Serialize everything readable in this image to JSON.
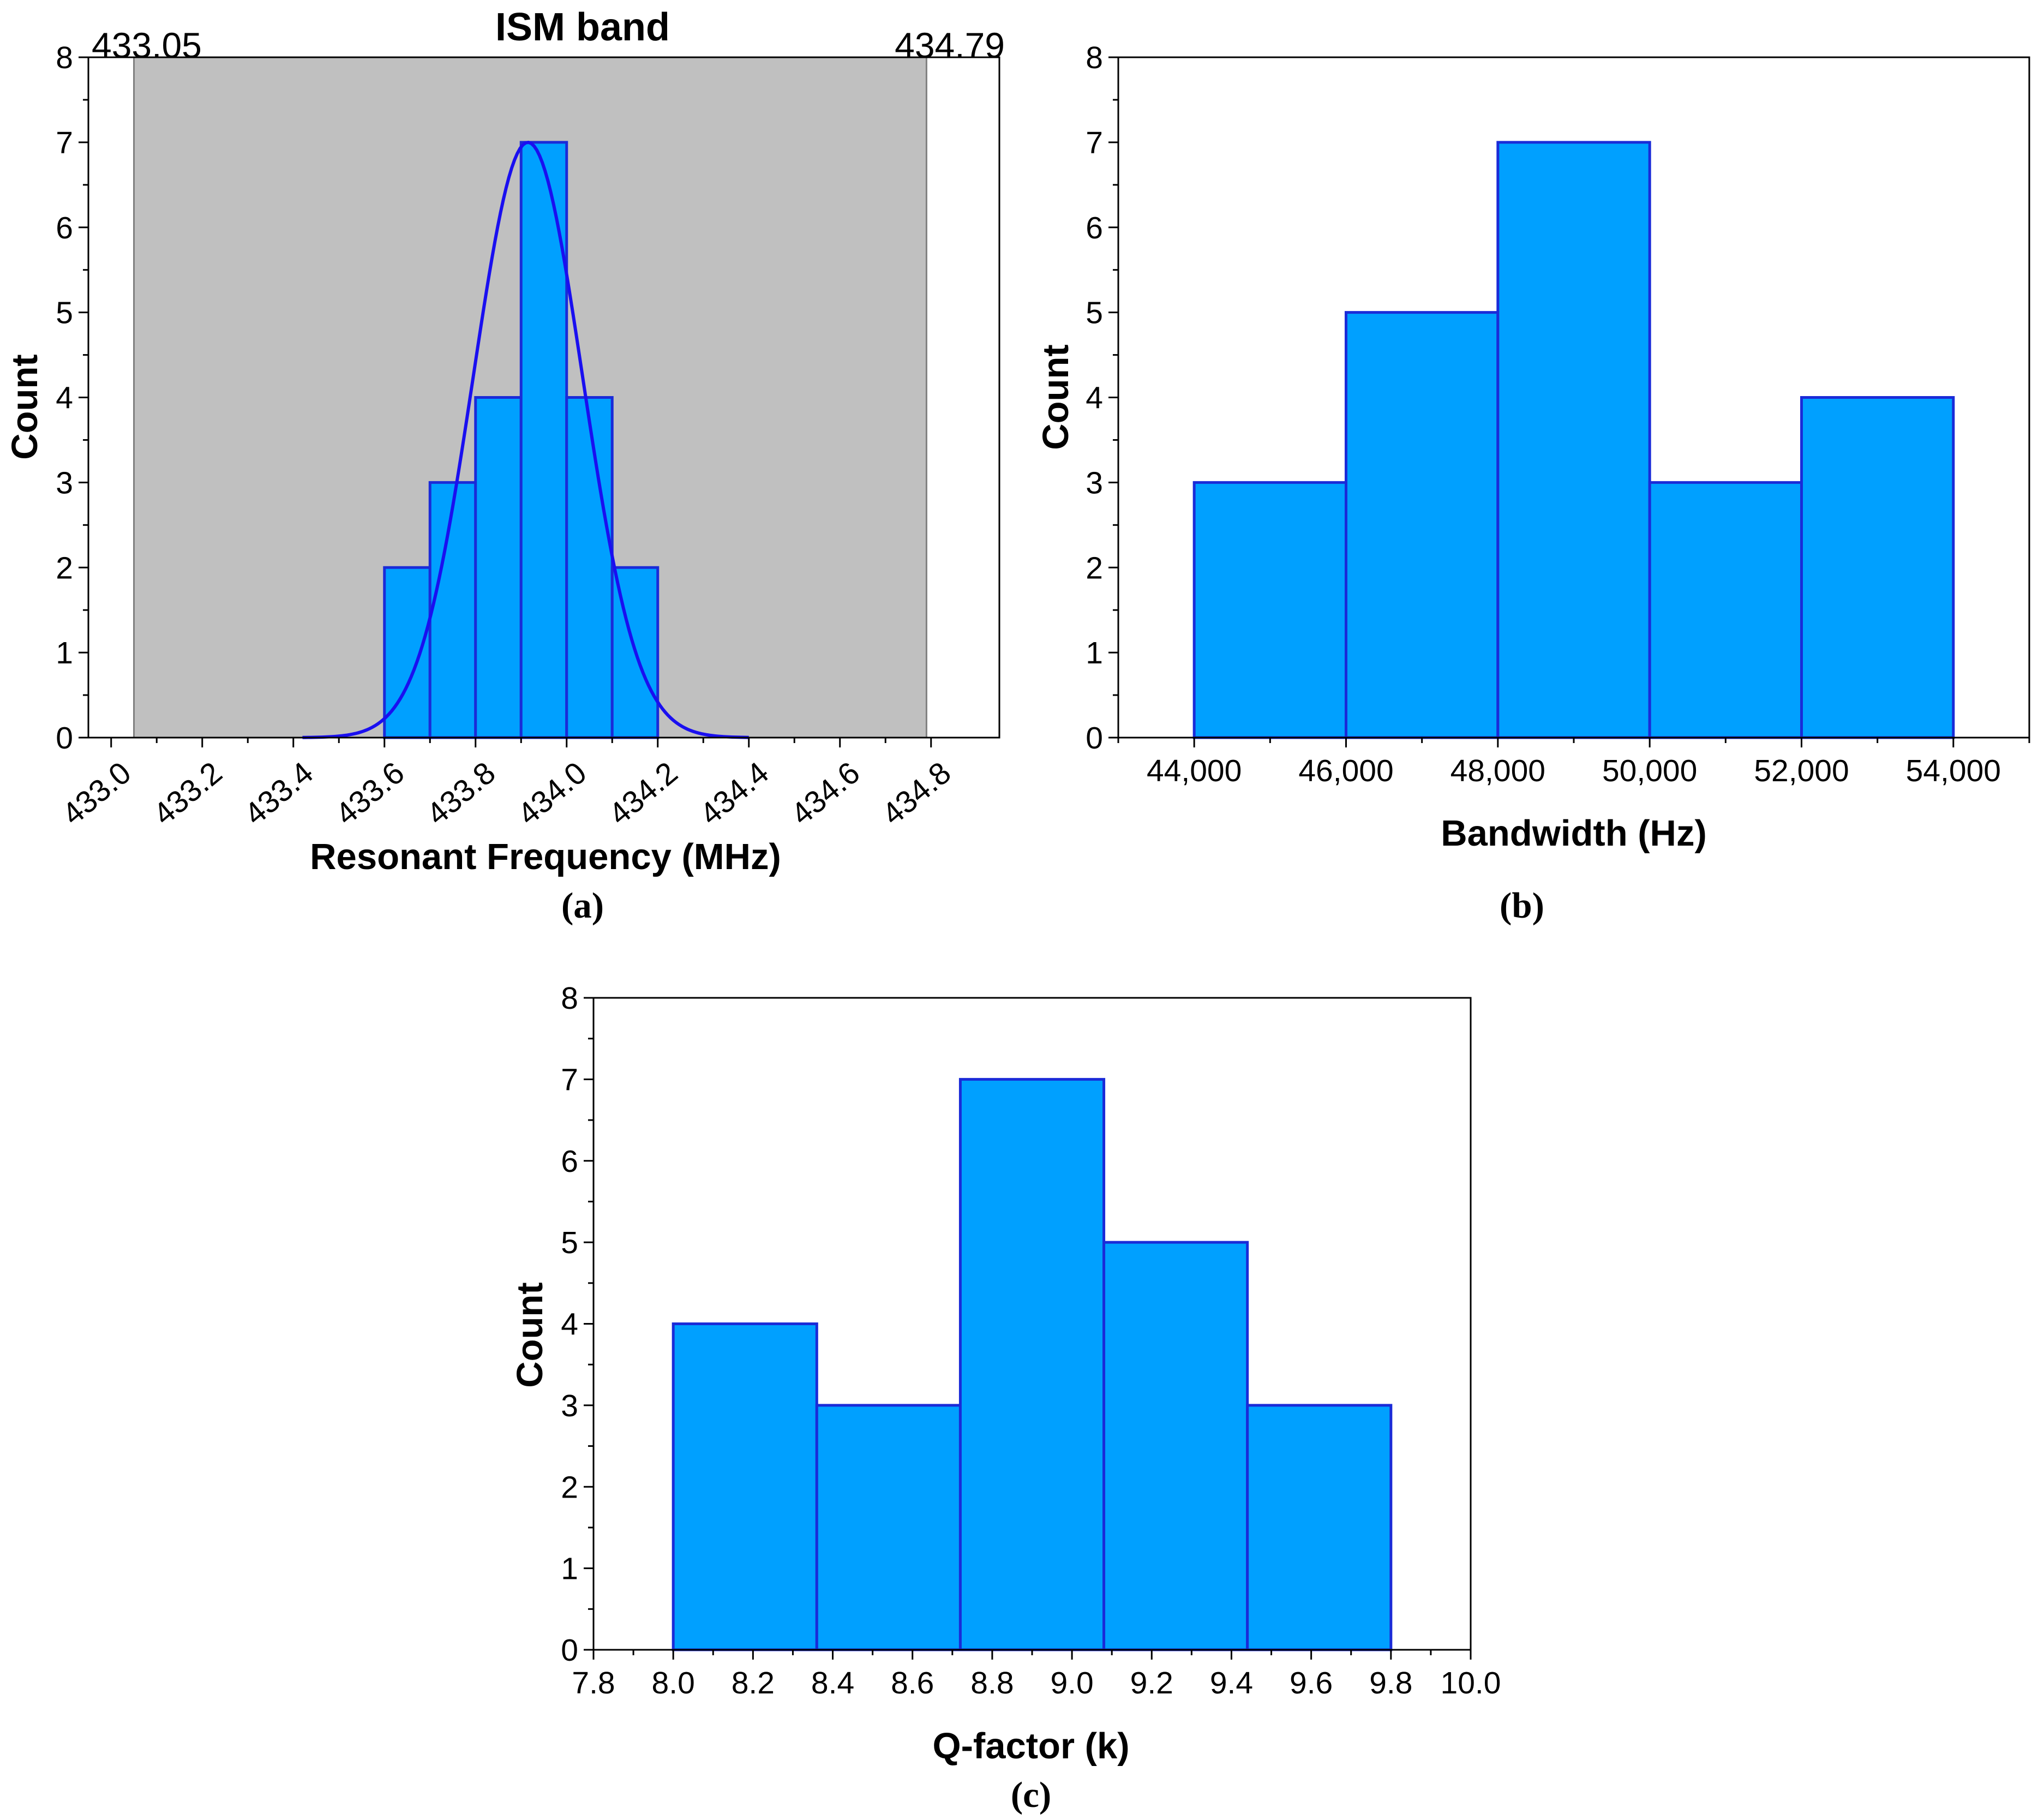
{
  "colors": {
    "bar_fill": "#00a0ff",
    "bar_stroke": "#1a2bd8",
    "fit_curve": "#1a0ff0",
    "band_fill": "#c0c0c0",
    "axis": "#000000"
  },
  "chart_data": [
    {
      "id": "a",
      "type": "bar",
      "panel_label": "(a)",
      "title": "ISM band",
      "xlabel": "Resonant Frequency (MHz)",
      "ylabel": "Count",
      "xlim": [
        432.95,
        434.95
      ],
      "ylim": [
        0,
        8
      ],
      "xticks": [
        "433.0",
        "433.2",
        "433.4",
        "433.6",
        "433.8",
        "434.0",
        "434.2",
        "434.4",
        "434.6",
        "434.8"
      ],
      "yticks": [
        "0",
        "1",
        "2",
        "3",
        "4",
        "5",
        "6",
        "7",
        "8"
      ],
      "band": {
        "start": 433.05,
        "end": 434.79,
        "start_label": "433.05",
        "end_label": "434.79"
      },
      "bins": [
        {
          "start": 433.6,
          "end": 433.7,
          "count": 2
        },
        {
          "start": 433.7,
          "end": 433.8,
          "count": 3
        },
        {
          "start": 433.8,
          "end": 433.9,
          "count": 4
        },
        {
          "start": 433.9,
          "end": 434.0,
          "count": 7
        },
        {
          "start": 434.0,
          "end": 434.1,
          "count": 4
        },
        {
          "start": 434.1,
          "end": 434.2,
          "count": 2
        }
      ],
      "fit": {
        "type": "normal",
        "mean": 433.915,
        "sd": 0.12,
        "peak": 7.0,
        "x_range": [
          433.42,
          434.4
        ]
      }
    },
    {
      "id": "b",
      "type": "bar",
      "panel_label": "(b)",
      "title": "",
      "xlabel": "Bandwidth (Hz)",
      "ylabel": "Count",
      "xlim": [
        43000,
        55000
      ],
      "ylim": [
        0,
        8
      ],
      "xticks": [
        "44,000",
        "46,000",
        "48,000",
        "50,000",
        "52,000",
        "54,000"
      ],
      "yticks": [
        "0",
        "1",
        "2",
        "3",
        "4",
        "5",
        "6",
        "7",
        "8"
      ],
      "bins": [
        {
          "start": 44000,
          "end": 46000,
          "count": 3
        },
        {
          "start": 46000,
          "end": 48000,
          "count": 5
        },
        {
          "start": 48000,
          "end": 50000,
          "count": 7
        },
        {
          "start": 50000,
          "end": 52000,
          "count": 3
        },
        {
          "start": 52000,
          "end": 54000,
          "count": 4
        }
      ]
    },
    {
      "id": "c",
      "type": "bar",
      "panel_label": "(c)",
      "title": "",
      "xlabel": "Q-factor (k)",
      "ylabel": "Count",
      "xlim": [
        7.8,
        10.0
      ],
      "ylim": [
        0,
        8
      ],
      "xticks": [
        "7.8",
        "8.0",
        "8.2",
        "8.4",
        "8.6",
        "8.8",
        "9.0",
        "9.2",
        "9.4",
        "9.6",
        "9.8",
        "10.0"
      ],
      "yticks": [
        "0",
        "1",
        "2",
        "3",
        "4",
        "5",
        "6",
        "7",
        "8"
      ],
      "bins": [
        {
          "start": 8.0,
          "end": 8.36,
          "count": 4
        },
        {
          "start": 8.36,
          "end": 8.72,
          "count": 3
        },
        {
          "start": 8.72,
          "end": 9.08,
          "count": 7
        },
        {
          "start": 9.08,
          "end": 9.44,
          "count": 5
        },
        {
          "start": 9.44,
          "end": 9.8,
          "count": 3
        }
      ]
    }
  ]
}
